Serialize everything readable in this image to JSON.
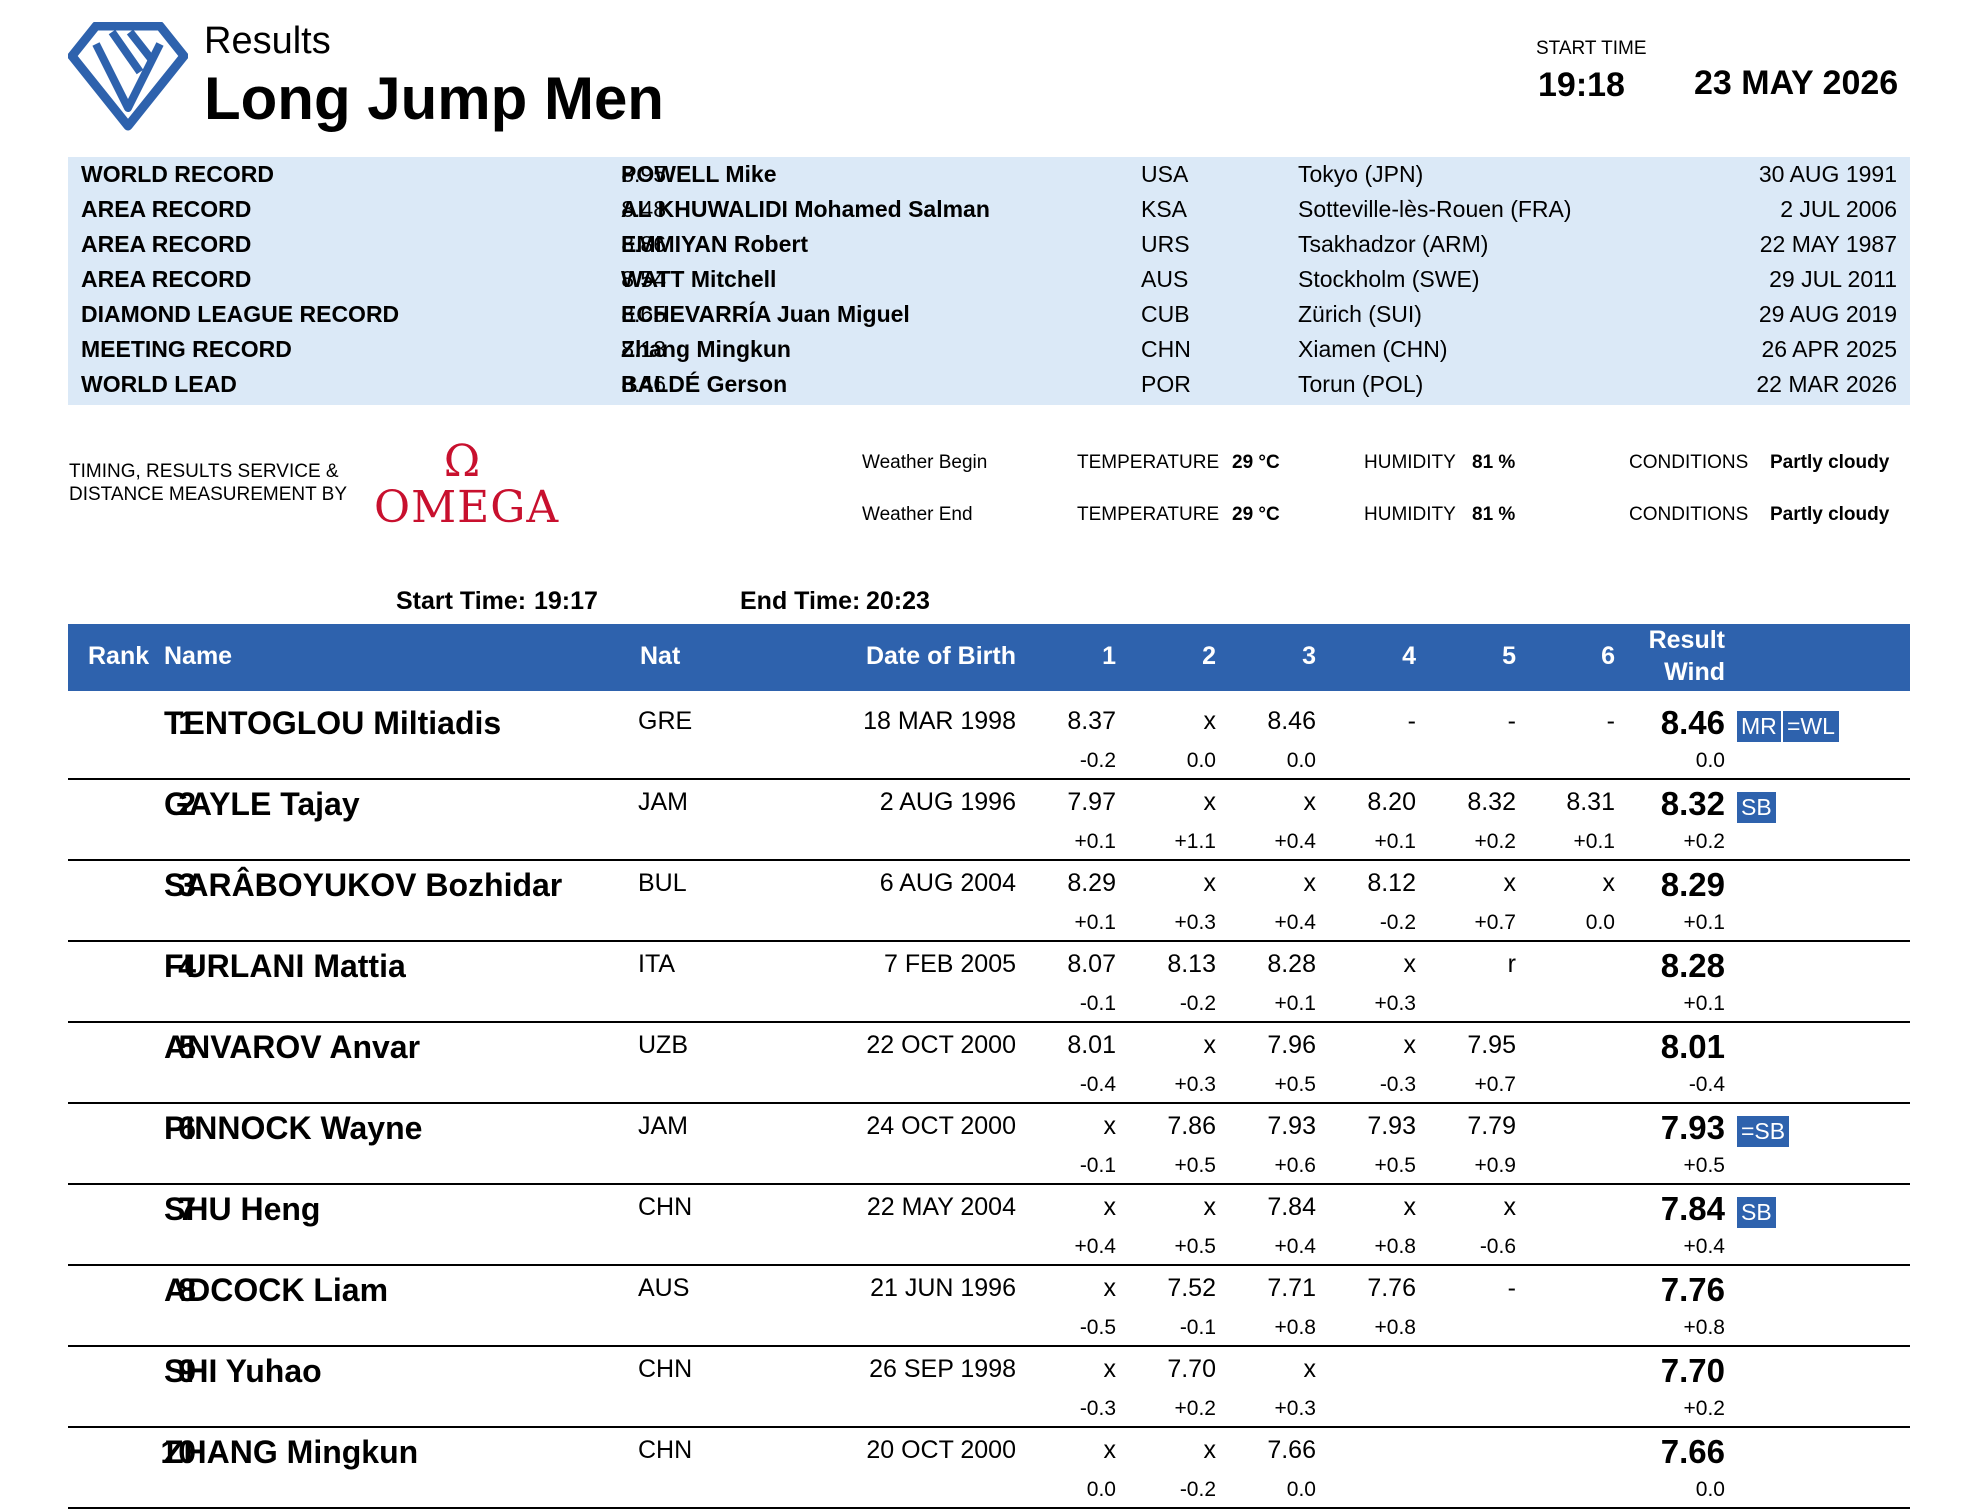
{
  "header": {
    "subtitle": "Results",
    "title": "Long Jump Men",
    "start_time_label": "START TIME",
    "start_time": "19:18",
    "date": "23 MAY 2026"
  },
  "records": [
    {
      "type": "WORLD RECORD",
      "mark": "8.95",
      "name": "POWELL Mike",
      "nat": "USA",
      "venue": "Tokyo (JPN)",
      "date": "30 AUG 1991"
    },
    {
      "type": "AREA RECORD",
      "mark": "8.48",
      "name": "AL KHUWALIDI Mohamed Salman",
      "nat": "KSA",
      "venue": "Sotteville-lès-Rouen (FRA)",
      "date": "2 JUL 2006"
    },
    {
      "type": "AREA RECORD",
      "mark": "8.86",
      "name": "EMMIYAN Robert",
      "nat": "URS",
      "venue": "Tsakhadzor (ARM)",
      "date": "22 MAY 1987"
    },
    {
      "type": "AREA RECORD",
      "mark": "8.54",
      "name": "WATT Mitchell",
      "nat": "AUS",
      "venue": "Stockholm (SWE)",
      "date": "29 JUL 2011"
    },
    {
      "type": "DIAMOND LEAGUE RECORD",
      "mark": "8.65",
      "name": "ECHEVARRÍA Juan Miguel",
      "nat": "CUB",
      "venue": "Zürich (SUI)",
      "date": "29 AUG 2019"
    },
    {
      "type": "MEETING RECORD",
      "mark": "8.18",
      "name": "Zhang Mingkun",
      "nat": "CHN",
      "venue": "Xiamen (CHN)",
      "date": "26 APR 2025"
    },
    {
      "type": "WORLD LEAD",
      "mark": "8.46",
      "name": "BALDÉ Gerson",
      "nat": "POR",
      "venue": "Torun (POL)",
      "date": "22 MAR 2026"
    }
  ],
  "timing": {
    "text": "TIMING, RESULTS SERVICE & DISTANCE MEASUREMENT BY",
    "brand": "OMEGA",
    "brand_color": "#c8102e"
  },
  "weather": {
    "rows": [
      {
        "label": "Weather Begin",
        "temp_label": "TEMPERATURE",
        "temp": "29 °C",
        "hum_label": "HUMIDITY",
        "hum": "81 %",
        "cond_label": "CONDITIONS",
        "cond": "Partly cloudy"
      },
      {
        "label": "Weather End",
        "temp_label": "TEMPERATURE",
        "temp": "29 °C",
        "hum_label": "HUMIDITY",
        "hum": "81 %",
        "cond_label": "CONDITIONS",
        "cond": "Partly cloudy"
      }
    ]
  },
  "times": {
    "start_label": "Start Time:",
    "start": "19:17",
    "end_label": "End Time:",
    "end": "20:23"
  },
  "table": {
    "headers": {
      "rank": "Rank",
      "name": "Name",
      "nat": "Nat",
      "dob": "Date of Birth",
      "a1": "1",
      "a2": "2",
      "a3": "3",
      "a4": "4",
      "a5": "5",
      "a6": "6",
      "result": "Result",
      "wind": "Wind"
    },
    "rows": [
      {
        "rank": "1",
        "name": "TENTOGLOU Miltiadis",
        "nat": "GRE",
        "dob": "18 MAR 1998",
        "attempts": [
          "8.37",
          "x",
          "8.46",
          "-",
          "-",
          "-"
        ],
        "winds": [
          "-0.2",
          "0.0",
          "0.0",
          "",
          "",
          ""
        ],
        "result": "8.46",
        "result_wind": "0.0",
        "badges": [
          "MR",
          "=WL"
        ]
      },
      {
        "rank": "2",
        "name": "GAYLE Tajay",
        "nat": "JAM",
        "dob": "2 AUG 1996",
        "attempts": [
          "7.97",
          "x",
          "x",
          "8.20",
          "8.32",
          "8.31"
        ],
        "winds": [
          "+0.1",
          "+1.1",
          "+0.4",
          "+0.1",
          "+0.2",
          "+0.1"
        ],
        "result": "8.32",
        "result_wind": "+0.2",
        "badges": [
          "SB"
        ]
      },
      {
        "rank": "3",
        "name": "SARÂBOYUKOV Bozhidar",
        "nat": "BUL",
        "dob": "6 AUG 2004",
        "attempts": [
          "8.29",
          "x",
          "x",
          "8.12",
          "x",
          "x"
        ],
        "winds": [
          "+0.1",
          "+0.3",
          "+0.4",
          "-0.2",
          "+0.7",
          "0.0"
        ],
        "result": "8.29",
        "result_wind": "+0.1",
        "badges": []
      },
      {
        "rank": "4",
        "name": "FURLANI Mattia",
        "nat": "ITA",
        "dob": "7 FEB 2005",
        "attempts": [
          "8.07",
          "8.13",
          "8.28",
          "x",
          "r",
          ""
        ],
        "winds": [
          "-0.1",
          "-0.2",
          "+0.1",
          "+0.3",
          "",
          ""
        ],
        "result": "8.28",
        "result_wind": "+0.1",
        "badges": []
      },
      {
        "rank": "5",
        "name": "ANVAROV Anvar",
        "nat": "UZB",
        "dob": "22 OCT 2000",
        "attempts": [
          "8.01",
          "x",
          "7.96",
          "x",
          "7.95",
          ""
        ],
        "winds": [
          "-0.4",
          "+0.3",
          "+0.5",
          "-0.3",
          "+0.7",
          ""
        ],
        "result": "8.01",
        "result_wind": "-0.4",
        "badges": []
      },
      {
        "rank": "6",
        "name": "PINNOCK Wayne",
        "nat": "JAM",
        "dob": "24 OCT 2000",
        "attempts": [
          "x",
          "7.86",
          "7.93",
          "7.93",
          "7.79",
          ""
        ],
        "winds": [
          "-0.1",
          "+0.5",
          "+0.6",
          "+0.5",
          "+0.9",
          ""
        ],
        "result": "7.93",
        "result_wind": "+0.5",
        "badges": [
          "=SB"
        ]
      },
      {
        "rank": "7",
        "name": "SHU Heng",
        "nat": "CHN",
        "dob": "22 MAY 2004",
        "attempts": [
          "x",
          "x",
          "7.84",
          "x",
          "x",
          ""
        ],
        "winds": [
          "+0.4",
          "+0.5",
          "+0.4",
          "+0.8",
          "-0.6",
          ""
        ],
        "result": "7.84",
        "result_wind": "+0.4",
        "badges": [
          "SB"
        ]
      },
      {
        "rank": "8",
        "name": "ADCOCK Liam",
        "nat": "AUS",
        "dob": "21 JUN 1996",
        "attempts": [
          "x",
          "7.52",
          "7.71",
          "7.76",
          "-",
          ""
        ],
        "winds": [
          "-0.5",
          "-0.1",
          "+0.8",
          "+0.8",
          "",
          ""
        ],
        "result": "7.76",
        "result_wind": "+0.8",
        "badges": []
      },
      {
        "rank": "9",
        "name": "SHI Yuhao",
        "nat": "CHN",
        "dob": "26 SEP 1998",
        "attempts": [
          "x",
          "7.70",
          "x",
          "",
          "",
          ""
        ],
        "winds": [
          "-0.3",
          "+0.2",
          "+0.3",
          "",
          "",
          ""
        ],
        "result": "7.70",
        "result_wind": "+0.2",
        "badges": []
      },
      {
        "rank": "10",
        "name": "ZHANG Mingkun",
        "nat": "CHN",
        "dob": "20 OCT 2000",
        "attempts": [
          "x",
          "x",
          "7.66",
          "",
          "",
          ""
        ],
        "winds": [
          "0.0",
          "-0.2",
          "0.0",
          "",
          "",
          ""
        ],
        "result": "7.66",
        "result_wind": "0.0",
        "badges": []
      }
    ]
  },
  "colors": {
    "brand_blue": "#2e62ad",
    "record_bg": "#dbe9f7"
  }
}
